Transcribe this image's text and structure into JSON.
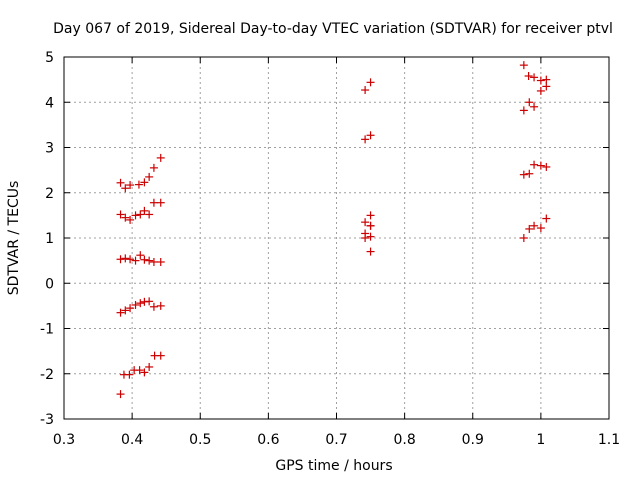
{
  "chart_data": {
    "type": "scatter",
    "title": "Day 067 of 2019, Sidereal Day-to-day VTEC variation (SDTVAR) for receiver ptvl",
    "xlabel": "GPS time / hours",
    "ylabel": "SDTVAR / TECUs",
    "xlim": [
      0.3,
      1.1
    ],
    "ylim": [
      -3,
      5
    ],
    "xticks": [
      "0.3",
      "0.4",
      "0.5",
      "0.6",
      "0.7",
      "0.8",
      "0.9",
      "1",
      "1.1"
    ],
    "yticks": [
      "-3",
      "-2",
      "-1",
      "0",
      "1",
      "2",
      "3",
      "4",
      "5"
    ],
    "grid": true,
    "marker": "+",
    "series": [
      {
        "name": "SDTVAR",
        "color": "#cc0000",
        "x": [
          0.383,
          0.388,
          0.396,
          0.403,
          0.411,
          0.418,
          0.425,
          0.433,
          0.442,
          0.383,
          0.39,
          0.397,
          0.405,
          0.412,
          0.418,
          0.425,
          0.432,
          0.442,
          0.383,
          0.39,
          0.397,
          0.405,
          0.412,
          0.418,
          0.425,
          0.432,
          0.442,
          0.383,
          0.39,
          0.397,
          0.405,
          0.412,
          0.418,
          0.425,
          0.432,
          0.442,
          0.383,
          0.39,
          0.397,
          0.41,
          0.418,
          0.425,
          0.432,
          0.442,
          0.742,
          0.75,
          0.742,
          0.75,
          0.742,
          0.75,
          0.742,
          0.75,
          0.742,
          0.75,
          0.75,
          0.75,
          0.975,
          0.982,
          0.99,
          1.0,
          1.008,
          0.975,
          0.983,
          0.99,
          1.0,
          1.008,
          0.975,
          0.983,
          0.99,
          1.0,
          1.008,
          0.975,
          0.983,
          0.99,
          1.0,
          1.008
        ],
        "y": [
          -2.45,
          -2.02,
          -2.02,
          -1.92,
          -1.92,
          -1.97,
          -1.85,
          -1.6,
          -1.6,
          -0.65,
          -0.6,
          -0.55,
          -0.48,
          -0.44,
          -0.41,
          -0.4,
          -0.52,
          -0.5,
          0.53,
          0.55,
          0.53,
          0.5,
          0.62,
          0.52,
          0.5,
          0.47,
          0.47,
          1.52,
          1.45,
          1.4,
          1.5,
          1.52,
          1.6,
          1.52,
          1.78,
          1.78,
          2.22,
          2.1,
          2.17,
          2.18,
          2.23,
          2.35,
          2.55,
          2.77,
          4.27,
          4.44,
          3.18,
          3.27,
          1.35,
          1.5,
          1.1,
          1.27,
          1.0,
          1.03,
          0.7,
          1.27,
          4.82,
          4.58,
          4.55,
          4.48,
          4.5,
          3.82,
          4.0,
          3.9,
          4.25,
          4.35,
          2.4,
          2.42,
          2.62,
          2.6,
          2.57,
          1.0,
          1.2,
          1.27,
          1.22,
          1.43
        ]
      }
    ]
  }
}
